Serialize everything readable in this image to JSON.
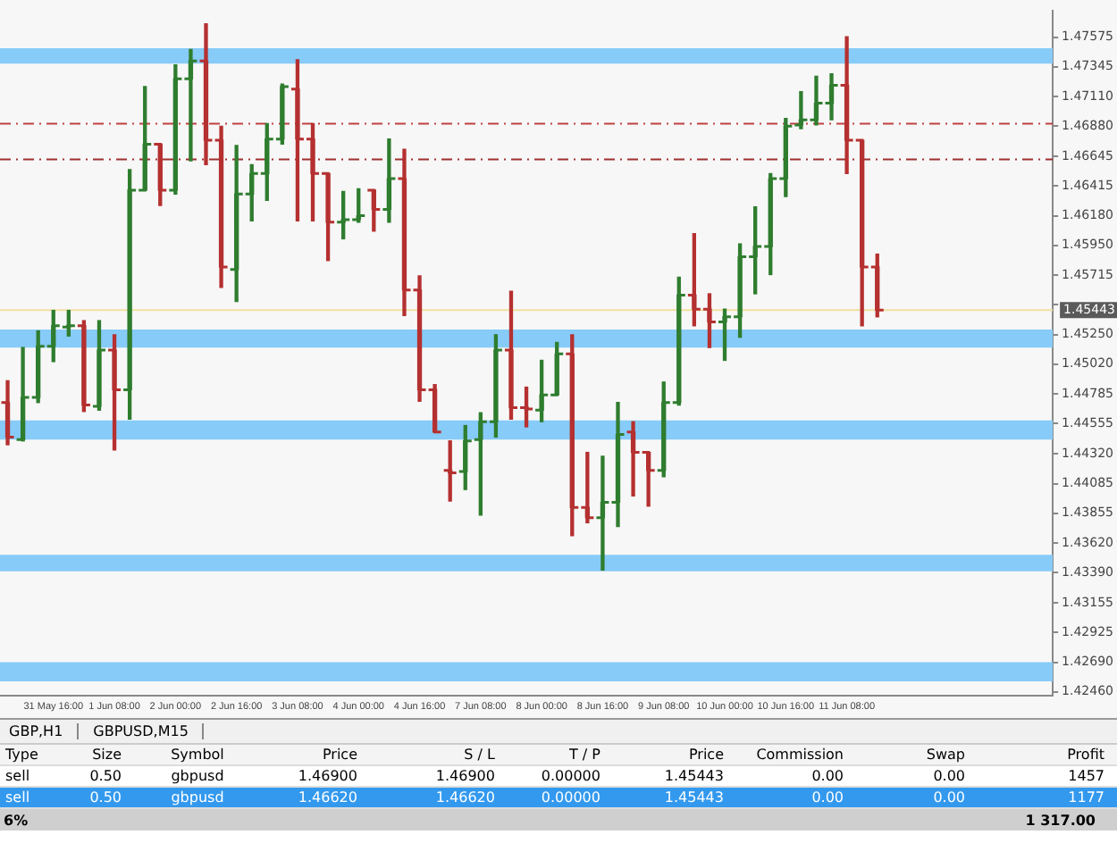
{
  "chart_data": [
    {
      "type": "candlestick",
      "categories": [
        null,
        null,
        null,
        "31 May 16:00",
        null,
        null,
        null,
        "1 Jun 08:00",
        null,
        null,
        null,
        "2 Jun 00:00",
        null,
        null,
        null,
        "2 Jun 16:00",
        null,
        null,
        null,
        "3 Jun 08:00",
        null,
        null,
        null,
        "4 Jun 00:00",
        null,
        null,
        null,
        "4 Jun 16:00",
        null,
        null,
        null,
        "7 Jun 08:00",
        null,
        null,
        null,
        "8 Jun 00:00",
        null,
        null,
        null,
        "8 Jun 16:00",
        null,
        null,
        null,
        "9 Jun 08:00",
        null,
        null,
        null,
        "10 Jun 00:00",
        null,
        null,
        null,
        "10 Jun 16:00",
        null,
        null,
        null,
        "11 Jun 08:00",
        null,
        null,
        null,
        null,
        null,
        null,
        null,
        null,
        null,
        null,
        null,
        null,
        null
      ],
      "ohlc": [
        [
          1.4472,
          1.4489,
          1.4439,
          1.4445
        ],
        [
          1.4443,
          1.4515,
          1.4442,
          1.4476
        ],
        [
          1.4476,
          1.4528,
          1.4472,
          1.4516
        ],
        [
          1.4516,
          1.4544,
          1.4504,
          1.4532
        ],
        [
          1.4531,
          1.4544,
          1.4524,
          1.4532
        ],
        [
          1.4532,
          1.4536,
          1.4465,
          1.447
        ],
        [
          1.4469,
          1.4536,
          1.4466,
          1.4513
        ],
        [
          1.4513,
          1.4525,
          1.4435,
          1.4482
        ],
        [
          1.4482,
          1.4654,
          1.4459,
          1.4638
        ],
        [
          1.4638,
          1.4719,
          1.4638,
          1.4674
        ],
        [
          1.4674,
          1.4674,
          1.4626,
          1.4638
        ],
        [
          1.4638,
          1.4736,
          1.4635,
          1.4725
        ],
        [
          1.4725,
          1.4748,
          1.4661,
          1.4739
        ],
        [
          1.4739,
          1.4768,
          1.4658,
          1.4677
        ],
        [
          1.4677,
          1.4688,
          1.4562,
          1.4578
        ],
        [
          1.4576,
          1.4673,
          1.4551,
          1.4635
        ],
        [
          1.4635,
          1.4658,
          1.4614,
          1.4651
        ],
        [
          1.4651,
          1.469,
          1.463,
          1.4678
        ],
        [
          1.4678,
          1.4721,
          1.4674,
          1.4719
        ],
        [
          1.4717,
          1.474,
          1.4614,
          1.4678
        ],
        [
          1.4678,
          1.469,
          1.4614,
          1.4651
        ],
        [
          1.4651,
          1.4651,
          1.4583,
          1.4613
        ],
        [
          1.4613,
          1.4637,
          1.46,
          1.4615
        ],
        [
          1.4615,
          1.4639,
          1.4613,
          1.4618
        ],
        [
          1.4638,
          1.4638,
          1.4606,
          1.4623
        ],
        [
          1.4623,
          1.4678,
          1.4613,
          1.4647
        ],
        [
          1.4647,
          1.467,
          1.454,
          1.456
        ],
        [
          1.456,
          1.4571,
          1.4473,
          1.4482
        ],
        [
          1.4482,
          1.4486,
          1.4449,
          1.4449
        ],
        [
          1.4419,
          1.4442,
          1.4395,
          1.4417
        ],
        [
          1.4418,
          1.4454,
          1.4404,
          1.4442
        ],
        [
          1.4443,
          1.4464,
          1.4384,
          1.4457
        ],
        [
          1.4457,
          1.4525,
          1.4445,
          1.4513
        ],
        [
          1.4513,
          1.4559,
          1.4459,
          1.4468
        ],
        [
          1.4468,
          1.4484,
          1.4453,
          1.4467
        ],
        [
          1.4466,
          1.4505,
          1.4457,
          1.4478
        ],
        [
          1.4478,
          1.4519,
          1.4478,
          1.451
        ],
        [
          1.451,
          1.4525,
          1.4368,
          1.439
        ],
        [
          1.439,
          1.4433,
          1.4378,
          1.4382
        ],
        [
          1.4382,
          1.443,
          1.4341,
          1.4394
        ],
        [
          1.4394,
          1.4472,
          1.4375,
          1.4447
        ],
        [
          1.4449,
          1.4457,
          1.4399,
          1.4433
        ],
        [
          1.4433,
          1.4433,
          1.4391,
          1.4419
        ],
        [
          1.4419,
          1.4488,
          1.4414,
          1.4472
        ],
        [
          1.4472,
          1.457,
          1.447,
          1.4556
        ],
        [
          1.4556,
          1.4604,
          1.4532,
          1.4545
        ],
        [
          1.4545,
          1.4557,
          1.4515,
          1.4535
        ],
        [
          1.4535,
          1.4545,
          1.4505,
          1.4539
        ],
        [
          1.4539,
          1.4596,
          1.4523,
          1.4586
        ],
        [
          1.4586,
          1.4625,
          1.4557,
          1.4594
        ],
        [
          1.4594,
          1.4651,
          1.4572,
          1.4647
        ],
        [
          1.4647,
          1.4694,
          1.4633,
          1.4688
        ],
        [
          1.4689,
          1.4715,
          1.4686,
          1.4693
        ],
        [
          1.4693,
          1.4727,
          1.4689,
          1.4706
        ],
        [
          1.4706,
          1.4729,
          1.4693,
          1.472
        ],
        [
          1.472,
          1.4758,
          1.4651,
          1.4677
        ],
        [
          1.4677,
          1.4677,
          1.4532,
          1.4578
        ],
        [
          1.4578,
          1.4588,
          1.4539,
          1.45443
        ],
        null,
        null,
        null,
        null,
        null,
        null,
        null,
        null,
        null,
        null,
        null
      ],
      "colors": [
        "#b53030",
        "#2f7d2f",
        "#2f7d2f",
        "#2f7d2f",
        "#2f7d2f",
        "#b53030",
        "#2f7d2f",
        "#b53030",
        "#2f7d2f",
        "#2f7d2f",
        "#b53030",
        "#2f7d2f",
        "#2f7d2f",
        "#b53030",
        "#b53030",
        "#2f7d2f",
        "#2f7d2f",
        "#2f7d2f",
        "#2f7d2f",
        "#b53030",
        "#b53030",
        "#b53030",
        "#2f7d2f",
        "#2f7d2f",
        "#b53030",
        "#2f7d2f",
        "#b53030",
        "#b53030",
        "#b53030",
        "#b53030",
        "#2f7d2f",
        "#2f7d2f",
        "#2f7d2f",
        "#b53030",
        "#b53030",
        "#2f7d2f",
        "#2f7d2f",
        "#b53030",
        "#b53030",
        "#2f7d2f",
        "#2f7d2f",
        "#b53030",
        "#b53030",
        "#2f7d2f",
        "#2f7d2f",
        "#b53030",
        "#b53030",
        "#2f7d2f",
        "#2f7d2f",
        "#2f7d2f",
        "#2f7d2f",
        "#2f7d2f",
        "#2f7d2f",
        "#2f7d2f",
        "#2f7d2f",
        "#b53030",
        "#b53030",
        "#b53030",
        null,
        null,
        null,
        null,
        null,
        null,
        null,
        null,
        null,
        null,
        null
      ],
      "ylim": [
        1.4243,
        1.4778
      ],
      "yticks": [
        1.47575,
        1.47345,
        {
          "value": 1.4711,
          "label": "1.47110"
        },
        {
          "value": 1.4688,
          "label": "1.46880"
        },
        1.46645,
        1.46415,
        {
          "value": 1.4618,
          "label": "1.46180"
        },
        {
          "value": 1.4595,
          "label": "1.45950"
        },
        1.45715,
        {
          "value": 1.45485,
          "label": null
        },
        {
          "value": 1.4525,
          "label": "1.45250"
        },
        {
          "value": 1.4502,
          "label": "1.45020"
        },
        1.44785,
        1.44555,
        {
          "value": 1.4432,
          "label": "1.44320"
        },
        1.44085,
        1.43855,
        {
          "value": 1.4362,
          "label": "1.43620"
        },
        {
          "value": 1.4339,
          "label": "1.43390"
        },
        1.43155,
        1.42925,
        {
          "value": 1.4269,
          "label": "1.42690"
        },
        {
          "value": 1.4246,
          "label": "1.42460"
        }
      ],
      "bands": [
        {
          "axis": "y",
          "from": 1.4737,
          "to": 1.4749,
          "color": "#87cbf8"
        },
        {
          "axis": "y",
          "from": 1.4515,
          "to": 1.4529,
          "color": "#87cbf8"
        },
        {
          "axis": "y",
          "from": 1.4443,
          "to": 1.4458,
          "color": "#87cbf8"
        },
        {
          "axis": "y",
          "from": 1.434,
          "to": 1.4353,
          "color": "#87cbf8"
        },
        {
          "axis": "y",
          "from": 1.4254,
          "to": 1.4269,
          "color": "#87cbf8"
        }
      ],
      "ref_lines": [
        {
          "axis": "y",
          "value": 1.469,
          "color": "#c04040",
          "line_style": "dashed"
        },
        {
          "axis": "y",
          "value": 1.4662,
          "color": "#a03030",
          "line_style": "dashed"
        },
        {
          "axis": "y",
          "value": 1.45443,
          "label": "1.45443",
          "color": "#f0e0a0"
        }
      ],
      "annotations": [
        "GBP,H1",
        "GBPUSD,M15"
      ],
      "grid": false,
      "legend": false
    },
    {
      "type": "other",
      "categories": [
        "Type",
        "Size",
        "Symbol",
        "Price",
        "S / L",
        "T / P",
        "Price",
        "Commission",
        "Swap",
        "Profit"
      ],
      "annotations": [
        "sell",
        "0.50",
        "gbpusd",
        "1.46900",
        "1.46900",
        "0.00000",
        "1.45443",
        "0.00",
        "0.00",
        "1457",
        "sell",
        "0.50",
        "gbpusd",
        "1.46620",
        "1.46620",
        "0.00000",
        "1.45443",
        "0.00",
        "0.00",
        "1177",
        "6%",
        "1 317.00"
      ]
    }
  ]
}
